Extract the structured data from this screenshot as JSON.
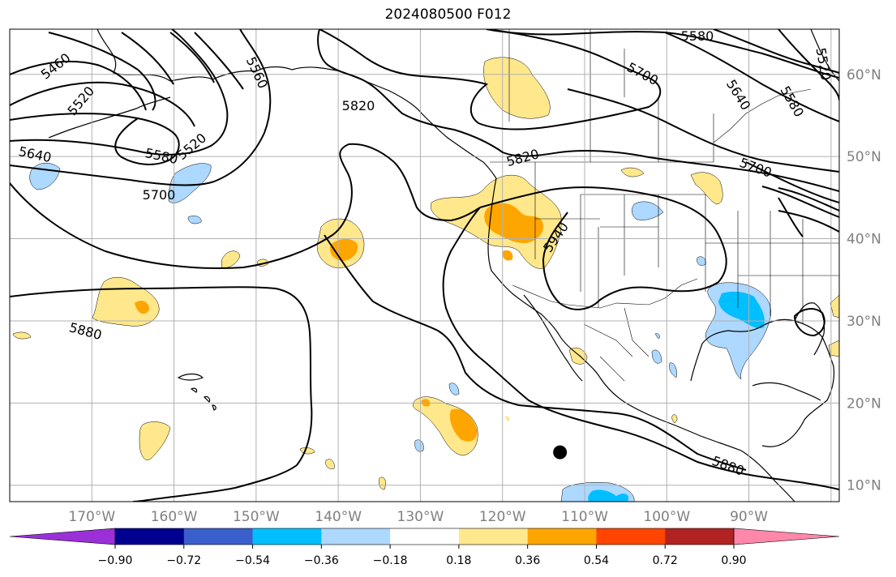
{
  "title": "2024080500 F012",
  "map": {
    "projection": "plate-carree",
    "lon_range": [
      -180,
      -79
    ],
    "lat_range": [
      8,
      65.5
    ],
    "grid": true,
    "colors": {
      "coast": "#000000",
      "grid": "#b0b0b0",
      "contour": "#000000",
      "marker": "#000000"
    },
    "marker": {
      "lon": -113,
      "lat": 14
    }
  },
  "lon_labels": [
    "170°W",
    "160°W",
    "150°W",
    "140°W",
    "130°W",
    "120°W",
    "110°W",
    "100°W",
    "90°W"
  ],
  "lat_labels": [
    "60°N",
    "50°N",
    "40°N",
    "30°N",
    "20°N",
    "10°N"
  ],
  "contour_labels": [
    "5460",
    "5520",
    "5560",
    "5580",
    "5520",
    "5640",
    "5580",
    "5700",
    "5820",
    "5820",
    "5940",
    "5880",
    "5880",
    "5580",
    "5520",
    "5700",
    "5640",
    "5580",
    "5700"
  ],
  "shading_legend": {
    "colors": [
      "#9b30d9",
      "#000090",
      "#3a5fcd",
      "#00bfff",
      "#add8ff",
      "#ffffff",
      "#ffe88c",
      "#ffa500",
      "#ff4500",
      "#b22222",
      "#ff88aa"
    ],
    "tick_labels": [
      "−0.90",
      "−0.72",
      "−0.54",
      "−0.36",
      "−0.18",
      "0.18",
      "0.36",
      "0.54",
      "0.72",
      "0.90"
    ]
  }
}
